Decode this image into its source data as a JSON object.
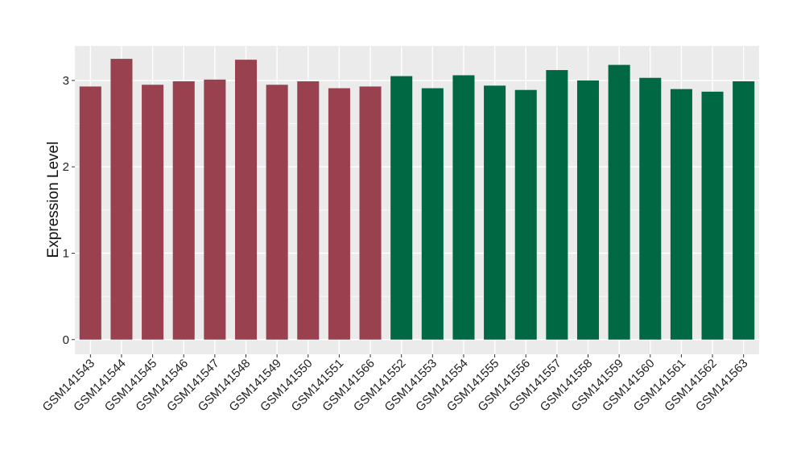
{
  "chart_data": {
    "type": "bar",
    "title": "",
    "xlabel": "",
    "ylabel": "Expression Level",
    "ylim": [
      -0.17,
      3.4
    ],
    "yticks": [
      0,
      1,
      2,
      3
    ],
    "grid": true,
    "legend": "none",
    "colors": {
      "group_1": "#99414f",
      "group_2": "#016844",
      "panel": "#ebebeb",
      "grid": "#ffffff",
      "tick": "#333333"
    },
    "categories": [
      "GSM141543",
      "GSM141544",
      "GSM141545",
      "GSM141546",
      "GSM141547",
      "GSM141548",
      "GSM141549",
      "GSM141550",
      "GSM141551",
      "GSM141566",
      "GSM141552",
      "GSM141553",
      "GSM141554",
      "GSM141555",
      "GSM141556",
      "GSM141557",
      "GSM141558",
      "GSM141559",
      "GSM141560",
      "GSM141561",
      "GSM141562",
      "GSM141563"
    ],
    "values": [
      2.93,
      3.25,
      2.95,
      2.99,
      3.01,
      3.24,
      2.95,
      2.99,
      2.91,
      2.93,
      3.05,
      2.91,
      3.06,
      2.94,
      2.89,
      3.12,
      3.0,
      3.18,
      3.03,
      2.9,
      2.87,
      2.99
    ],
    "groups": [
      1,
      1,
      1,
      1,
      1,
      1,
      1,
      1,
      1,
      1,
      2,
      2,
      2,
      2,
      2,
      2,
      2,
      2,
      2,
      2,
      2,
      2
    ]
  }
}
